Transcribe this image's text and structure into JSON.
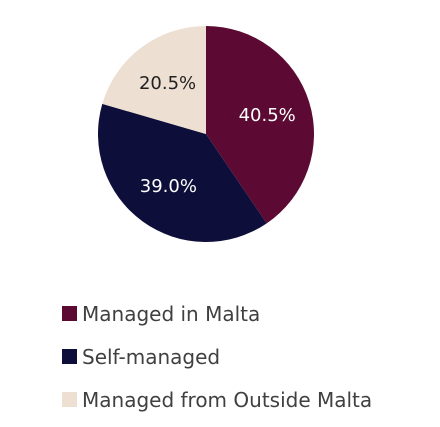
{
  "chart_data": {
    "type": "pie",
    "slices": [
      {
        "label": "Managed in Malta",
        "value": 40.5,
        "value_label": "40.5%",
        "color": "#5c0a33",
        "label_color": "#ffffff"
      },
      {
        "label": "Self-managed",
        "value": 39.0,
        "value_label": "39.0%",
        "color": "#0e0e3a",
        "label_color": "#ffffff"
      },
      {
        "label": "Managed from Outside Malta",
        "value": 20.5,
        "value_label": "20.5%",
        "color": "#eddfd2",
        "label_color": "#222222"
      }
    ],
    "start_angle": "12 o'clock, clockwise",
    "legend_placement": "bottom"
  }
}
